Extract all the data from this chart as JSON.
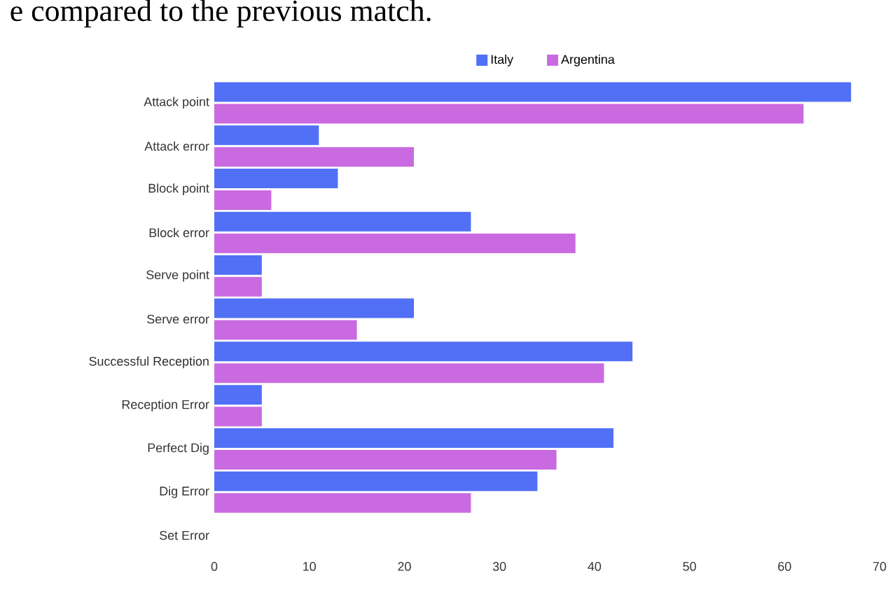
{
  "chart_data": {
    "type": "bar",
    "orientation": "horizontal",
    "title": "e compared to the previous match.",
    "categories": [
      "Attack point",
      "Attack error",
      "Block point",
      "Block error",
      "Serve point",
      "Serve error",
      "Successful Reception",
      "Reception Error",
      "Perfect Dig",
      "Dig Error",
      "Set Error"
    ],
    "series": [
      {
        "name": "Italy",
        "color": "#5170f6",
        "values": [
          67,
          11,
          13,
          27,
          5,
          21,
          44,
          5,
          42,
          34,
          0
        ]
      },
      {
        "name": "Argentina",
        "color": "#c96ae0",
        "values": [
          62,
          21,
          6,
          38,
          5,
          15,
          41,
          5,
          36,
          27,
          0
        ]
      }
    ],
    "xlim": [
      0,
      70
    ],
    "xticks": [
      0,
      10,
      20,
      30,
      40,
      50,
      60,
      70
    ],
    "grid": false,
    "legend": "top"
  }
}
